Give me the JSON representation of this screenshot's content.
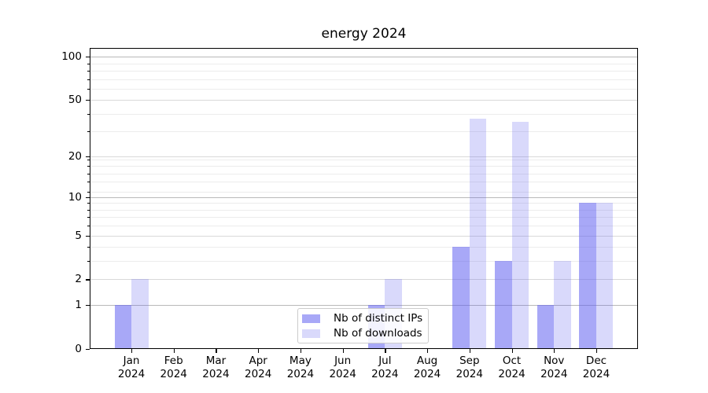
{
  "chart_data": {
    "type": "bar",
    "title": "energy 2024",
    "categories": [
      "Jan 2024",
      "Feb 2024",
      "Mar 2024",
      "Apr 2024",
      "May 2024",
      "Jun 2024",
      "Jul 2024",
      "Aug 2024",
      "Sep 2024",
      "Oct 2024",
      "Nov 2024",
      "Dec 2024"
    ],
    "series": [
      {
        "name": "Nb of distinct IPs",
        "values": [
          1,
          0,
          0,
          0,
          0,
          0,
          1,
          0,
          4,
          3,
          1,
          9
        ],
        "color": "rgba(96,96,240,0.55)"
      },
      {
        "name": "Nb of downloads",
        "values": [
          2,
          0,
          0,
          0,
          0,
          0,
          2,
          0,
          37,
          35,
          3,
          9
        ],
        "color": "rgba(96,96,240,0.24)"
      }
    ],
    "xlabel": "",
    "ylabel": "",
    "yscale": "log1p",
    "ylim": [
      0,
      115
    ],
    "yticks": [
      0,
      1,
      2,
      5,
      10,
      20,
      50,
      100
    ],
    "minor_yticks": [
      3,
      4,
      6,
      7,
      8,
      9,
      11,
      13,
      15,
      17,
      19,
      30,
      40,
      60,
      70,
      80,
      90
    ],
    "grid": true,
    "legend_position": "lower center",
    "colors": {
      "grid_power10": "#b9b9b9",
      "grid_major": "#d9d9d9",
      "grid_minor": "#ececec",
      "axis": "#000000",
      "legend_border": "#cccccc",
      "text": "#000000"
    }
  }
}
